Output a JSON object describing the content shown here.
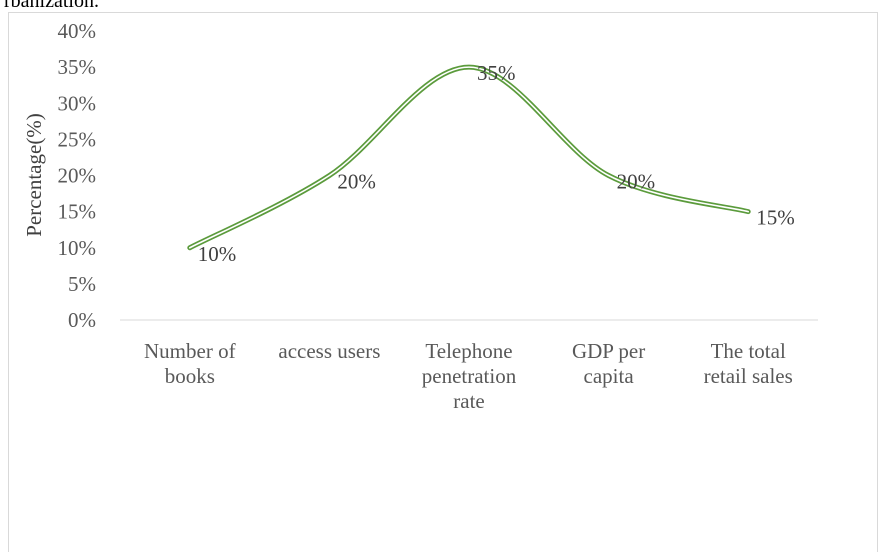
{
  "caption_fragment": "rbanization.",
  "chart_data": {
    "type": "line",
    "title": "",
    "xlabel": "",
    "ylabel": "Percentage(%)",
    "categories": [
      [
        "Number of",
        "books"
      ],
      [
        "access users"
      ],
      [
        "Telephone",
        "penetration",
        "rate"
      ],
      [
        "GDP per",
        "capita"
      ],
      [
        "The total",
        "retail sales"
      ]
    ],
    "values": [
      10,
      20,
      35,
      20,
      15
    ],
    "data_labels": [
      "10%",
      "20%",
      "35%",
      "20%",
      "15%"
    ],
    "y_ticks": [
      "0%",
      "5%",
      "10%",
      "15%",
      "20%",
      "25%",
      "30%",
      "35%",
      "40%"
    ],
    "ylim": [
      0,
      40
    ],
    "smooth": true,
    "grid": false,
    "legend": "none",
    "line_color": "#5b9b3c"
  }
}
